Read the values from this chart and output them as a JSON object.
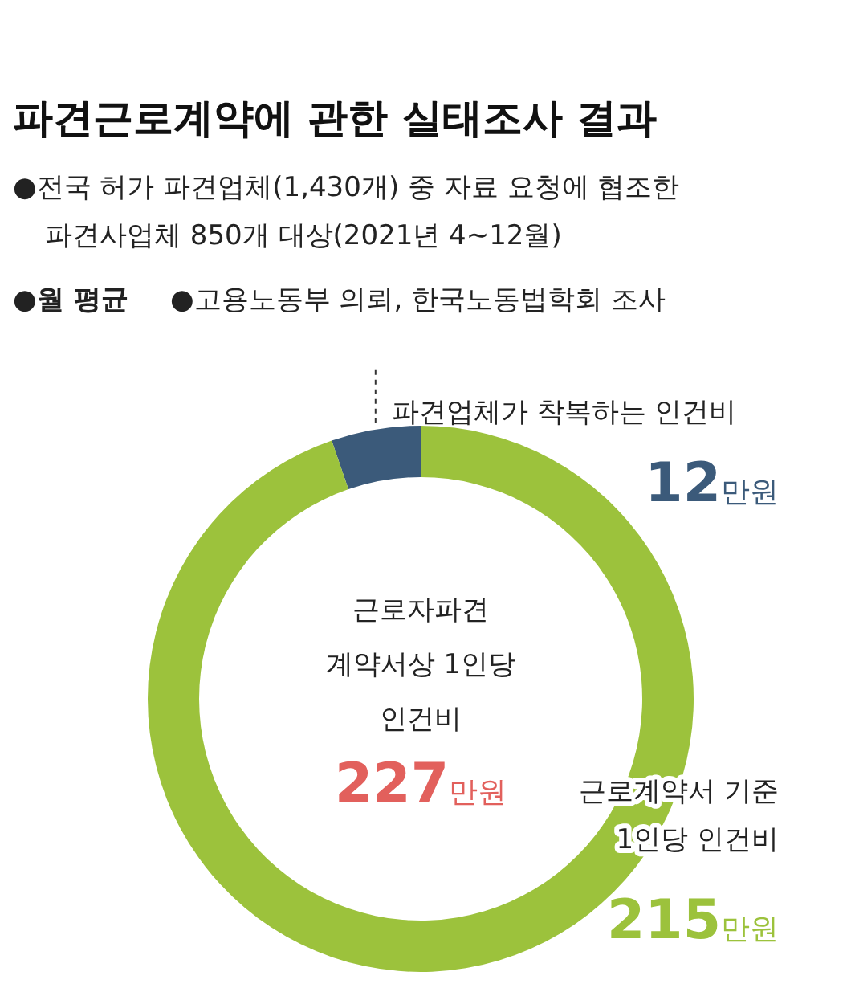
{
  "chart_data": {
    "type": "donut",
    "title": "파견근로계약에 관한 실태조사 결과",
    "subtitle": "●전국 허가 파견업체(1,430개) 중 자료 요청에 협조한\n  파견사업체 850개 대상(2021년 4~12월)",
    "annotations": [
      "●월 평균",
      "●고용노동부 의뢰, 한국노동법학회 조사",
      "근로자파견\n계약서상 1인당\n인건비\n227만원"
    ],
    "categories": [
      "파견업체가 착복하는 인건비",
      "근로계약서 기준\n1인당 인건비"
    ],
    "values": [
      12,
      215
    ],
    "colors": [
      "#3b5a7a",
      "#9cc23c"
    ],
    "value_labels": [
      "12만원",
      "215만원"
    ]
  }
}
